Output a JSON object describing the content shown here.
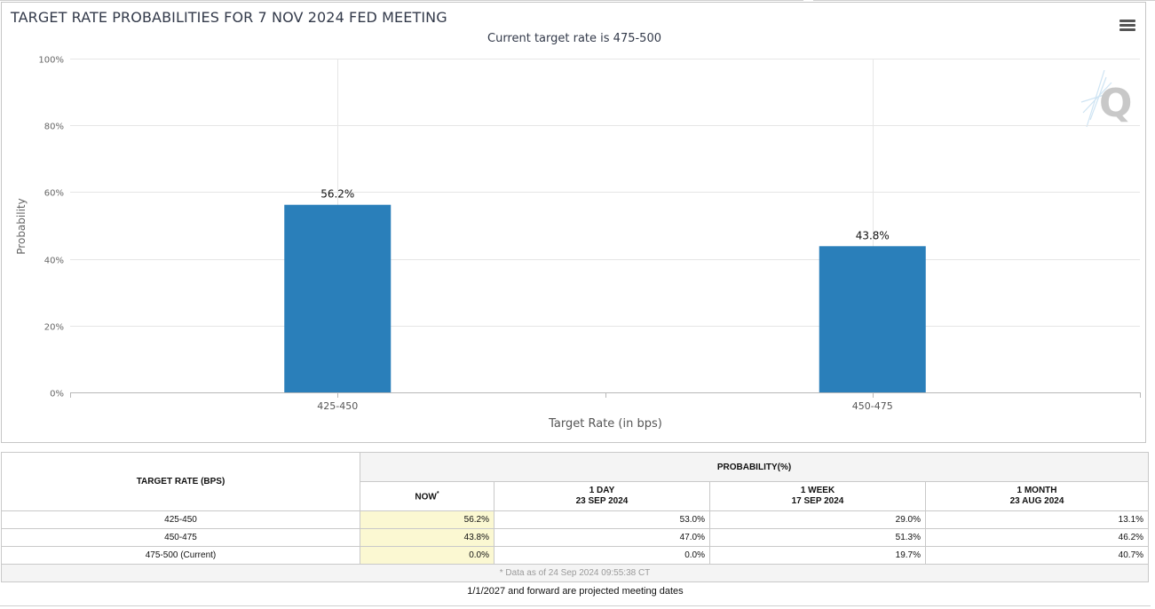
{
  "chart": {
    "title": "TARGET RATE PROBABILITIES FOR 7 NOV 2024 FED MEETING",
    "subtitle": "Current target rate is 475-500",
    "menu_icon": "hamburger-menu-icon",
    "watermark_icon": "q-logo-watermark-icon"
  },
  "chart_data": {
    "type": "bar",
    "title": "TARGET RATE PROBABILITIES FOR 7 NOV 2024 FED MEETING",
    "subtitle": "Current target rate is 475-500",
    "categories": [
      "425-450",
      "450-475"
    ],
    "values": [
      56.2,
      43.8
    ],
    "data_labels": [
      "56.2%",
      "43.8%"
    ],
    "xlabel": "Target Rate (in bps)",
    "ylabel": "Probability",
    "ylim": [
      0,
      100
    ],
    "yticks": [
      0,
      20,
      40,
      60,
      80,
      100
    ],
    "ytick_labels": [
      "0%",
      "20%",
      "40%",
      "60%",
      "80%",
      "100%"
    ],
    "grid": true,
    "bar_color": "#2a7fba"
  },
  "table": {
    "header_rate": "TARGET RATE (BPS)",
    "header_probability": "PROBABILITY(%)",
    "columns": [
      {
        "line1": "NOW",
        "line2": "",
        "mark": "*"
      },
      {
        "line1": "1 DAY",
        "line2": "23 SEP 2024",
        "mark": ""
      },
      {
        "line1": "1 WEEK",
        "line2": "17 SEP 2024",
        "mark": ""
      },
      {
        "line1": "1 MONTH",
        "line2": "23 AUG 2024",
        "mark": ""
      }
    ],
    "rows": [
      {
        "rate": "425-450",
        "values": [
          "56.2%",
          "53.0%",
          "29.0%",
          "13.1%"
        ]
      },
      {
        "rate": "450-475",
        "values": [
          "43.8%",
          "47.0%",
          "51.3%",
          "46.2%"
        ]
      },
      {
        "rate": "475-500 (Current)",
        "values": [
          "0.0%",
          "0.0%",
          "19.7%",
          "40.7%"
        ]
      }
    ],
    "data_note": "* Data as of 24 Sep 2024 09:55:38 CT"
  },
  "footer_note": "1/1/2027 and forward are projected meeting dates"
}
